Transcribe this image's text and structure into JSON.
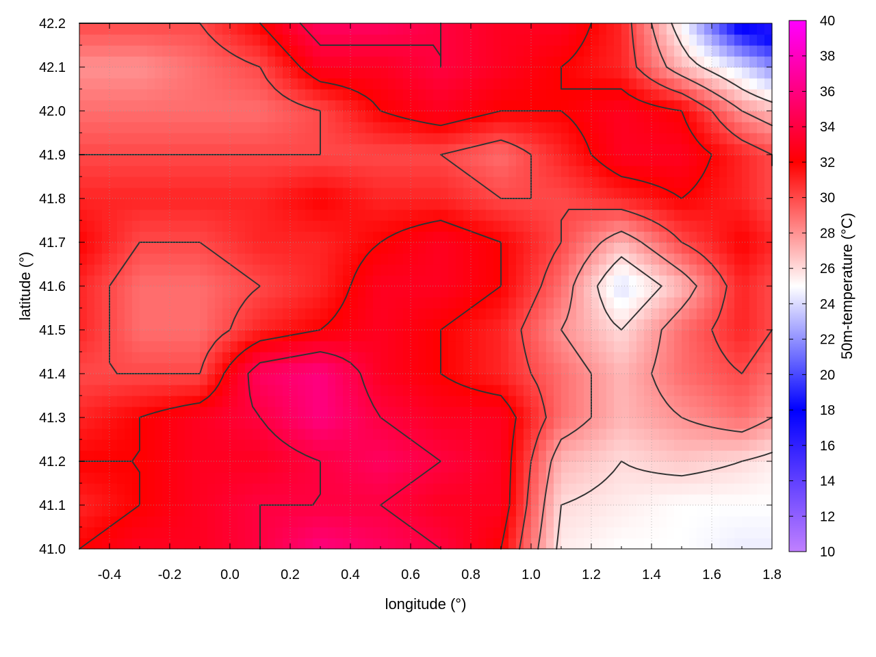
{
  "chart_data": {
    "type": "heatmap",
    "title": "",
    "xlabel": "longitude (°)",
    "ylabel": "latitude (°)",
    "colorbar_label": "50m-temperature (°C)",
    "xlim": [
      -0.5,
      1.8
    ],
    "ylim": [
      41.0,
      42.2
    ],
    "x_ticks": [
      -0.4,
      -0.2,
      0.0,
      0.2,
      0.4,
      0.6,
      0.8,
      1.0,
      1.2,
      1.4,
      1.6,
      1.8
    ],
    "x_tick_labels": [
      "-0.4",
      "-0.2",
      "0.0",
      "0.2",
      "0.4",
      "0.6",
      "0.8",
      "1.0",
      "1.2",
      "1.4",
      "1.6",
      "1.8"
    ],
    "y_ticks": [
      41.0,
      41.1,
      41.2,
      41.3,
      41.4,
      41.5,
      41.6,
      41.7,
      41.8,
      41.9,
      42.0,
      42.1,
      42.2
    ],
    "y_tick_labels": [
      "41.0",
      "41.1",
      "41.2",
      "41.3",
      "41.4",
      "41.5",
      "41.6",
      "41.7",
      "41.8",
      "41.9",
      "42.0",
      "42.1",
      "42.2"
    ],
    "colorbar_range": [
      10,
      40
    ],
    "colorbar_ticks": [
      10,
      12,
      14,
      16,
      18,
      20,
      22,
      24,
      26,
      28,
      30,
      32,
      34,
      36,
      38,
      40
    ],
    "colorbar_tick_labels": [
      "10",
      "12",
      "14",
      "16",
      "18",
      "20",
      "22",
      "24",
      "26",
      "28",
      "30",
      "32",
      "34",
      "36",
      "38",
      "40"
    ],
    "colormap": [
      {
        "value": 10,
        "color": "#c080ff"
      },
      {
        "value": 18,
        "color": "#0000ff"
      },
      {
        "value": 25,
        "color": "#ffffff"
      },
      {
        "value": 32,
        "color": "#ff0000"
      },
      {
        "value": 40,
        "color": "#ff00ff"
      }
    ],
    "grid": true,
    "contour_color": "#333333",
    "field": {
      "x_points": [
        -0.5,
        -0.3,
        -0.1,
        0.1,
        0.3,
        0.5,
        0.7,
        0.9,
        1.1,
        1.3,
        1.5,
        1.7,
        1.8
      ],
      "y_points": [
        41.0,
        41.1,
        41.2,
        41.3,
        41.4,
        41.5,
        41.6,
        41.7,
        41.8,
        41.9,
        42.0,
        42.1,
        42.2
      ],
      "values": [
        [
          32,
          33,
          33,
          34,
          36,
          35,
          34,
          32,
          25.5,
          25,
          25,
          24.5,
          24.5
        ],
        [
          31,
          32,
          33,
          34,
          34,
          34,
          33,
          33,
          26,
          25.5,
          25,
          25,
          25
        ],
        [
          32,
          32,
          33,
          33,
          34,
          35,
          34,
          33,
          27,
          26,
          26.5,
          26,
          25.5
        ],
        [
          31,
          32,
          33,
          34,
          36,
          34,
          33,
          33,
          29,
          27,
          28,
          29,
          28
        ],
        [
          30,
          30,
          30,
          35,
          36,
          33,
          32,
          31,
          29,
          27,
          29,
          30,
          29
        ],
        [
          31,
          29,
          29,
          31,
          32,
          33,
          32,
          31,
          28,
          26,
          29,
          31,
          30
        ],
        [
          31,
          29,
          29,
          30,
          31,
          33,
          33,
          32,
          29,
          24,
          27,
          31,
          30
        ],
        [
          32,
          30,
          30,
          31,
          31,
          32,
          33,
          32,
          30,
          27,
          30,
          32,
          31
        ],
        [
          31,
          31,
          31,
          31,
          32,
          31,
          31,
          30,
          30,
          31,
          32,
          31,
          30
        ],
        [
          30,
          30,
          30,
          30,
          30,
          30,
          30,
          29,
          31,
          33,
          33,
          31,
          30
        ],
        [
          29,
          29,
          29,
          29,
          30,
          32,
          33,
          32,
          32,
          33,
          32,
          28,
          27
        ],
        [
          28,
          28,
          29,
          30,
          33,
          33,
          34,
          33,
          32,
          31,
          27,
          24,
          22
        ],
        [
          30,
          30,
          30,
          32,
          35,
          35,
          34,
          33,
          33,
          31,
          25,
          17,
          16
        ]
      ],
      "contour_levels": [
        26,
        28,
        30,
        32,
        34
      ]
    }
  }
}
